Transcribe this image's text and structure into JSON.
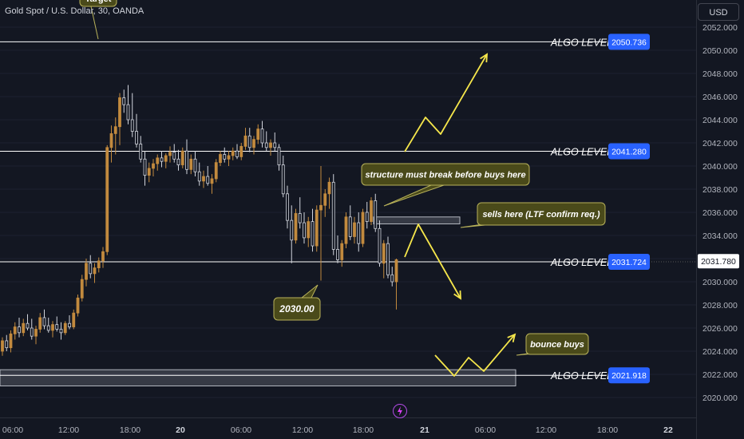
{
  "header": {
    "symbol_title": "Gold Spot / U.S. Dollar, 30, OANDA",
    "currency_button": "USD"
  },
  "colors": {
    "background": "#131722",
    "bull": "#c28a3e",
    "bear": "#d1d4dc",
    "level_line": "#ffffff",
    "label_blue": "#2962ff",
    "arrow": "#f5e64b",
    "callout_bg": "#4a4a1a",
    "callout_border": "#b8b25a",
    "axis_text": "#b2b5be",
    "current_price_bg": "#ffffff"
  },
  "chart_data": {
    "type": "candlestick",
    "y_axis": {
      "min": 2019.0,
      "max": 2053.0,
      "ticks": [
        "2052.000",
        "2050.000",
        "2048.000",
        "2046.000",
        "2044.000",
        "2042.000",
        "2040.000",
        "2038.000",
        "2036.000",
        "2034.000",
        "2032.000",
        "2030.000",
        "2028.000",
        "2026.000",
        "2024.000",
        "2022.000",
        "2020.000"
      ]
    },
    "x_axis": {
      "ticks": [
        "06:00",
        "12:00",
        "18:00",
        "20",
        "06:00",
        "12:00",
        "18:00",
        "21",
        "06:00",
        "12:00",
        "18:00",
        "22"
      ],
      "bold_ticks": [
        "20",
        "21",
        "22"
      ]
    },
    "current_price": "2031.780",
    "levels": [
      {
        "label": "ALGO LEVEL",
        "value": 2050.736,
        "value_text": "2050.736"
      },
      {
        "label": "ALGO LEVEL",
        "value": 2041.28,
        "value_text": "2041.280"
      },
      {
        "label": "ALGO LEVEL",
        "value": 2031.724,
        "value_text": "2031.724"
      },
      {
        "label": "ALGO LEVEL",
        "value": 2021.918,
        "value_text": "2021.918"
      }
    ],
    "callouts": [
      {
        "text": "structure must break before buys here",
        "bold": false
      },
      {
        "text": "sells here (LTF confirm req.)",
        "bold": false
      },
      {
        "text": "bounce buys",
        "bold": false
      },
      {
        "text": "2030.00",
        "bold": true
      },
      {
        "text": "Target",
        "bold": false
      }
    ],
    "candles": [
      [
        2024.0,
        2025.2,
        2023.6,
        2024.9
      ],
      [
        2024.9,
        2025.4,
        2024.0,
        2024.3
      ],
      [
        2024.3,
        2025.8,
        2023.9,
        2025.5
      ],
      [
        2025.5,
        2026.5,
        2025.0,
        2026.1
      ],
      [
        2026.1,
        2026.9,
        2025.2,
        2025.6
      ],
      [
        2025.6,
        2026.8,
        2025.3,
        2026.4
      ],
      [
        2026.4,
        2027.2,
        2025.8,
        2026.0
      ],
      [
        2026.0,
        2026.8,
        2025.0,
        2025.3
      ],
      [
        2025.3,
        2026.2,
        2024.6,
        2025.9
      ],
      [
        2025.9,
        2027.3,
        2025.6,
        2026.9
      ],
      [
        2026.9,
        2027.6,
        2025.9,
        2026.2
      ],
      [
        2026.2,
        2026.9,
        2025.6,
        2025.8
      ],
      [
        2025.8,
        2026.6,
        2025.2,
        2026.3
      ],
      [
        2026.3,
        2027.0,
        2025.7,
        2025.9
      ],
      [
        2025.9,
        2026.5,
        2025.0,
        2025.6
      ],
      [
        2025.6,
        2026.6,
        2025.4,
        2026.4
      ],
      [
        2026.4,
        2027.1,
        2025.9,
        2026.1
      ],
      [
        2026.1,
        2027.6,
        2025.9,
        2027.3
      ],
      [
        2027.3,
        2028.9,
        2027.0,
        2028.6
      ],
      [
        2028.6,
        2030.6,
        2028.3,
        2030.2
      ],
      [
        2030.2,
        2032.0,
        2029.6,
        2031.6
      ],
      [
        2031.6,
        2032.3,
        2030.3,
        2030.7
      ],
      [
        2030.7,
        2031.6,
        2029.9,
        2031.2
      ],
      [
        2031.2,
        2032.1,
        2030.8,
        2031.8
      ],
      [
        2031.8,
        2033.0,
        2031.2,
        2032.6
      ],
      [
        2032.6,
        2041.8,
        2032.3,
        2041.6
      ],
      [
        2041.6,
        2043.5,
        2040.3,
        2042.8
      ],
      [
        2042.8,
        2044.2,
        2041.0,
        2043.4
      ],
      [
        2043.4,
        2046.3,
        2041.8,
        2045.9
      ],
      [
        2045.9,
        2046.6,
        2044.6,
        2045.3
      ],
      [
        2045.3,
        2047.0,
        2043.6,
        2044.0
      ],
      [
        2044.0,
        2046.3,
        2042.5,
        2043.0
      ],
      [
        2043.0,
        2044.5,
        2041.6,
        2041.9
      ],
      [
        2041.9,
        2042.6,
        2040.3,
        2040.6
      ],
      [
        2040.6,
        2041.3,
        2038.3,
        2039.2
      ],
      [
        2039.2,
        2040.3,
        2038.6,
        2039.8
      ],
      [
        2039.8,
        2040.6,
        2039.1,
        2040.2
      ],
      [
        2040.2,
        2041.0,
        2039.6,
        2040.7
      ],
      [
        2040.7,
        2041.3,
        2039.9,
        2040.4
      ],
      [
        2040.4,
        2041.1,
        2039.8,
        2040.9
      ],
      [
        2040.9,
        2041.7,
        2040.3,
        2041.2
      ],
      [
        2041.2,
        2041.9,
        2040.3,
        2040.6
      ],
      [
        2040.6,
        2041.4,
        2039.6,
        2040.1
      ],
      [
        2040.1,
        2041.6,
        2039.8,
        2041.3
      ],
      [
        2041.3,
        2042.3,
        2039.3,
        2039.7
      ],
      [
        2039.7,
        2041.0,
        2039.3,
        2040.6
      ],
      [
        2040.6,
        2041.3,
        2039.1,
        2039.5
      ],
      [
        2039.5,
        2040.3,
        2038.3,
        2038.7
      ],
      [
        2038.7,
        2039.6,
        2038.1,
        2039.1
      ],
      [
        2039.1,
        2040.0,
        2038.3,
        2038.5
      ],
      [
        2038.5,
        2039.3,
        2037.6,
        2038.9
      ],
      [
        2038.9,
        2040.6,
        2038.6,
        2040.3
      ],
      [
        2040.3,
        2041.3,
        2040.0,
        2041.0
      ],
      [
        2041.0,
        2041.6,
        2040.3,
        2040.6
      ],
      [
        2040.6,
        2041.3,
        2040.0,
        2040.9
      ],
      [
        2040.9,
        2041.6,
        2040.5,
        2041.3
      ],
      [
        2041.3,
        2041.9,
        2040.6,
        2040.8
      ],
      [
        2040.8,
        2042.0,
        2040.5,
        2041.7
      ],
      [
        2041.7,
        2043.3,
        2041.4,
        2042.6
      ],
      [
        2042.6,
        2043.3,
        2041.2,
        2041.6
      ],
      [
        2041.6,
        2042.6,
        2041.0,
        2042.3
      ],
      [
        2042.3,
        2043.6,
        2041.9,
        2043.2
      ],
      [
        2043.2,
        2043.9,
        2041.6,
        2042.0
      ],
      [
        2042.0,
        2043.0,
        2041.3,
        2041.6
      ],
      [
        2041.6,
        2042.3,
        2040.9,
        2042.0
      ],
      [
        2042.0,
        2042.9,
        2041.3,
        2041.6
      ],
      [
        2041.6,
        2041.9,
        2039.6,
        2040.1
      ],
      [
        2040.1,
        2040.9,
        2037.3,
        2037.6
      ],
      [
        2037.6,
        2038.3,
        2034.6,
        2035.3
      ],
      [
        2035.3,
        2036.6,
        2031.6,
        2033.6
      ],
      [
        2033.6,
        2036.3,
        2033.3,
        2035.9
      ],
      [
        2035.9,
        2037.3,
        2034.6,
        2035.1
      ],
      [
        2035.1,
        2036.0,
        2033.3,
        2033.8
      ],
      [
        2033.8,
        2035.6,
        2033.0,
        2035.2
      ],
      [
        2035.2,
        2036.3,
        2032.6,
        2033.1
      ],
      [
        2033.1,
        2036.6,
        2032.6,
        2036.2
      ],
      [
        2036.2,
        2040.0,
        2030.1,
        2036.6
      ],
      [
        2036.6,
        2038.0,
        2035.6,
        2037.6
      ],
      [
        2037.6,
        2039.0,
        2036.3,
        2038.6
      ],
      [
        2038.6,
        2039.3,
        2032.3,
        2032.8
      ],
      [
        2032.8,
        2034.0,
        2031.6,
        2031.9
      ],
      [
        2031.9,
        2033.6,
        2031.3,
        2033.3
      ],
      [
        2033.3,
        2036.0,
        2032.9,
        2035.6
      ],
      [
        2035.6,
        2036.6,
        2033.6,
        2033.9
      ],
      [
        2033.9,
        2035.6,
        2033.3,
        2035.1
      ],
      [
        2035.1,
        2036.0,
        2032.6,
        2033.3
      ],
      [
        2033.3,
        2036.3,
        2033.0,
        2036.0
      ],
      [
        2036.0,
        2036.9,
        2034.6,
        2035.2
      ],
      [
        2035.2,
        2037.3,
        2034.9,
        2037.0
      ],
      [
        2037.0,
        2037.6,
        2034.3,
        2034.6
      ],
      [
        2034.6,
        2035.3,
        2031.3,
        2031.6
      ],
      [
        2031.6,
        2033.6,
        2030.3,
        2033.3
      ],
      [
        2033.3,
        2033.9,
        2030.3,
        2030.6
      ],
      [
        2030.6,
        2031.3,
        2029.6,
        2030.0
      ],
      [
        2030.0,
        2032.0,
        2027.6,
        2031.9
      ]
    ]
  }
}
